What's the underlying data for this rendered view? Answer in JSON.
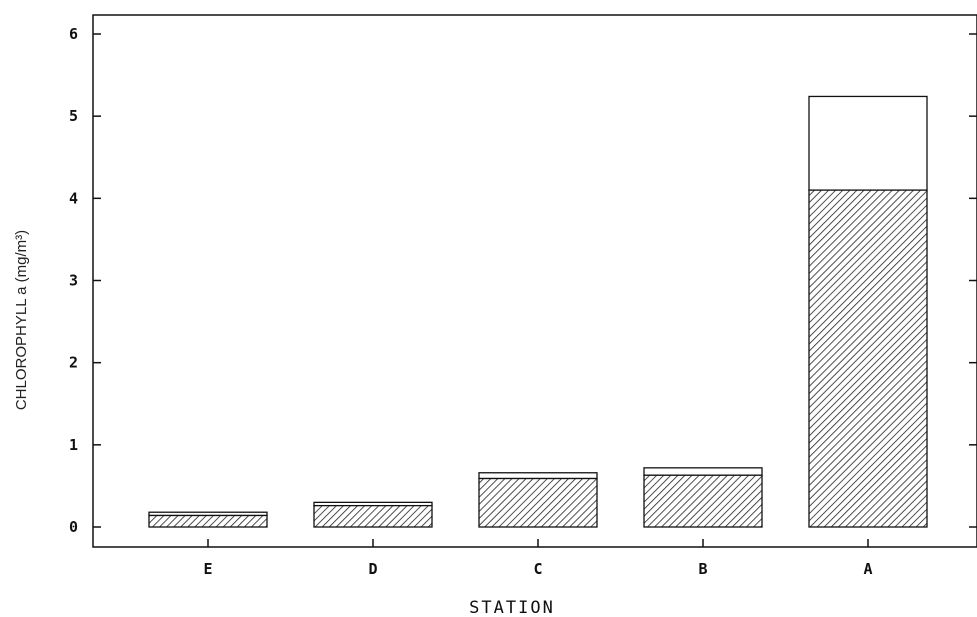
{
  "chart_data": {
    "type": "bar",
    "stacked": true,
    "categories": [
      "E",
      "D",
      "C",
      "B",
      "A"
    ],
    "series": [
      {
        "pattern": "hatched",
        "values": [
          0.14,
          0.26,
          0.59,
          0.63,
          4.1
        ]
      },
      {
        "pattern": "open",
        "values": [
          0.04,
          0.04,
          0.07,
          0.09,
          1.14
        ]
      }
    ],
    "totals": [
      0.18,
      0.3,
      0.66,
      0.72,
      5.24
    ],
    "xlabel": "STATION",
    "ylabel": "CHLOROPHYLL a (mg/m³)",
    "ylim": [
      0,
      6
    ],
    "yticks": [
      0,
      1,
      2,
      3,
      4,
      5,
      6
    ],
    "ytick_labels": [
      "0",
      "1",
      "2",
      "3",
      "4",
      "5",
      "6"
    ],
    "grid": false,
    "legend": "none"
  }
}
